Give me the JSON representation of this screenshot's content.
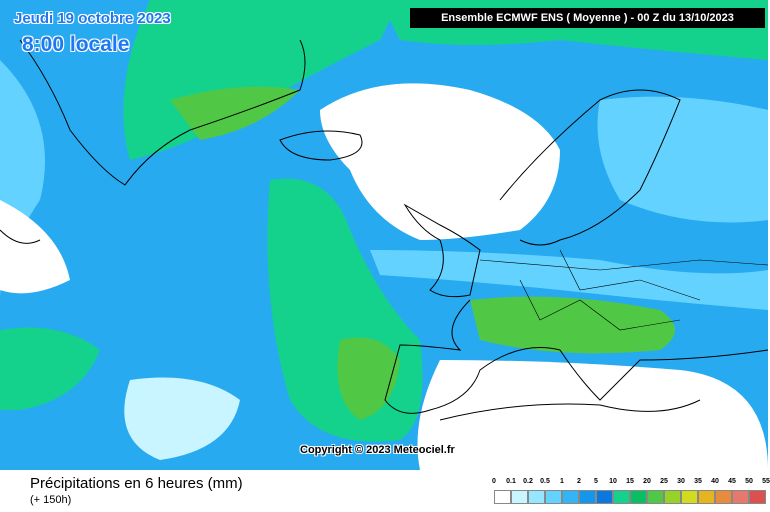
{
  "date": "Jeudi 19 octobre 2023",
  "time": "8:00 locale",
  "header": "Ensemble ECMWF ENS  ( Moyenne )  -  00 Z du 13/10/2023",
  "copyright": "Copyright © 2023 Meteociel.fr",
  "title": "Précipitations en 6 heures (mm)",
  "subtitle": "(+ 150h)",
  "legend": {
    "labels": [
      "0",
      "0.1",
      "0.2",
      "0.5",
      "1",
      "2",
      "5",
      "10",
      "15",
      "20",
      "25",
      "30",
      "35",
      "40",
      "45",
      "50",
      "55"
    ],
    "colors": [
      "#ffffff",
      "#c8f5ff",
      "#96e6ff",
      "#64d2ff",
      "#32b4f5",
      "#1496eb",
      "#0a78dc",
      "#14d28c",
      "#0abe64",
      "#50c846",
      "#96d228",
      "#d2dc1e",
      "#e6b41e",
      "#e68c3c",
      "#e6786e",
      "#dc5050"
    ]
  }
}
